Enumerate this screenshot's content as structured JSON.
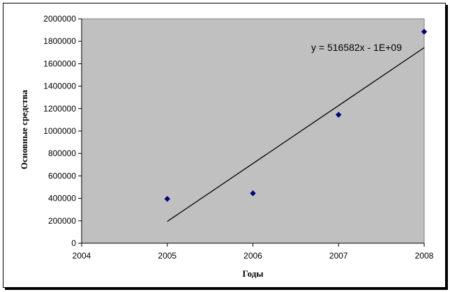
{
  "chart_data": {
    "type": "scatter",
    "title": "",
    "xlabel": "Годы",
    "ylabel": "Основные средства",
    "xlim": [
      2004,
      2008
    ],
    "ylim": [
      0,
      2000000
    ],
    "x_ticks": [
      2004,
      2005,
      2006,
      2007,
      2008
    ],
    "y_ticks": [
      0,
      200000,
      400000,
      600000,
      800000,
      1000000,
      1200000,
      1400000,
      1600000,
      1800000,
      2000000
    ],
    "grid": false,
    "legend": "none",
    "points": [
      {
        "x": 2005,
        "y": 395000
      },
      {
        "x": 2006,
        "y": 445000
      },
      {
        "x": 2007,
        "y": 1145000
      },
      {
        "x": 2008,
        "y": 1885000
      }
    ],
    "trendline": {
      "equation": "y = 516582x - 1E+09",
      "x_start": 2005,
      "y_start": 194000,
      "x_end": 2008,
      "y_end": 1743000
    },
    "colors": {
      "plot_area": "#c0c0c0",
      "marker": "#000080",
      "line": "#000000"
    }
  }
}
